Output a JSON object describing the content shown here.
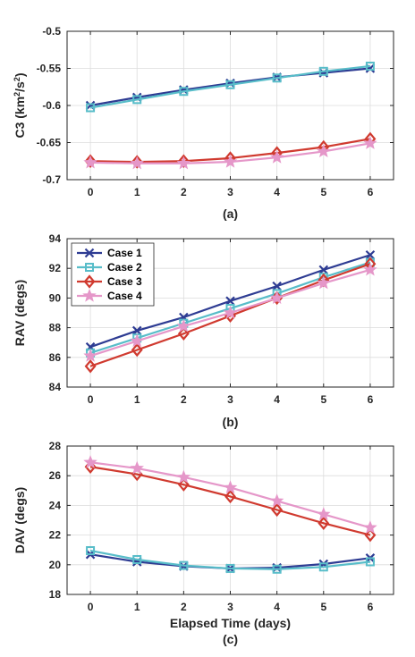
{
  "chart_data": [
    {
      "type": "line",
      "id": "a",
      "caption": "(a)",
      "ylabel": "C3 (km",
      "ylabel_sup1": "2",
      "ylabel_mid": "/s",
      "ylabel_sup2": "2",
      "ylabel_end": ")",
      "xlabel": "",
      "xlim": [
        -0.5,
        6.5
      ],
      "ylim": [
        -0.7,
        -0.5
      ],
      "xticks": [
        0,
        1,
        2,
        3,
        4,
        5,
        6
      ],
      "yticks": [
        -0.7,
        -0.65,
        -0.6,
        -0.55,
        -0.5
      ],
      "ytick_labels": [
        "-0.7",
        "-0.65",
        "-0.6",
        "-0.55",
        "-0.5"
      ],
      "grid": true,
      "x": [
        0,
        1,
        2,
        3,
        4,
        5,
        6
      ],
      "series": [
        {
          "name": "Case 1",
          "color": "#2E3C93",
          "marker": "x",
          "values": [
            -0.6,
            -0.589,
            -0.579,
            -0.57,
            -0.562,
            -0.556,
            -0.55
          ]
        },
        {
          "name": "Case 2",
          "color": "#58BDC9",
          "marker": "square",
          "values": [
            -0.603,
            -0.592,
            -0.581,
            -0.572,
            -0.563,
            -0.554,
            -0.547
          ]
        },
        {
          "name": "Case 3",
          "color": "#D03A2F",
          "marker": "diamond",
          "values": [
            -0.675,
            -0.676,
            -0.675,
            -0.671,
            -0.664,
            -0.656,
            -0.645
          ]
        },
        {
          "name": "Case 4",
          "color": "#E597C9",
          "marker": "star",
          "values": [
            -0.677,
            -0.678,
            -0.678,
            -0.676,
            -0.67,
            -0.662,
            -0.651
          ]
        }
      ]
    },
    {
      "type": "line",
      "id": "b",
      "caption": "(b)",
      "ylabel": "RAV (degs)",
      "xlabel": "",
      "xlim": [
        -0.5,
        6.5
      ],
      "ylim": [
        84,
        94
      ],
      "xticks": [
        0,
        1,
        2,
        3,
        4,
        5,
        6
      ],
      "yticks": [
        84,
        86,
        88,
        90,
        92,
        94
      ],
      "ytick_labels": [
        "84",
        "86",
        "88",
        "90",
        "92",
        "94"
      ],
      "grid": true,
      "legend": {
        "position": "top-left",
        "entries": [
          "Case 1",
          "Case 2",
          "Case 3",
          "Case 4"
        ]
      },
      "x": [
        0,
        1,
        2,
        3,
        4,
        5,
        6
      ],
      "series": [
        {
          "name": "Case 1",
          "color": "#2E3C93",
          "marker": "x",
          "values": [
            86.7,
            87.8,
            88.7,
            89.8,
            90.8,
            91.9,
            92.9
          ]
        },
        {
          "name": "Case 2",
          "color": "#58BDC9",
          "marker": "square",
          "values": [
            86.3,
            87.3,
            88.3,
            89.3,
            90.3,
            91.4,
            92.4
          ]
        },
        {
          "name": "Case 3",
          "color": "#D03A2F",
          "marker": "diamond",
          "values": [
            85.4,
            86.5,
            87.6,
            88.8,
            90.0,
            91.2,
            92.3
          ]
        },
        {
          "name": "Case 4",
          "color": "#E597C9",
          "marker": "star",
          "values": [
            86.1,
            87.1,
            88.1,
            89.0,
            90.0,
            91.0,
            91.9
          ]
        }
      ]
    },
    {
      "type": "line",
      "id": "c",
      "caption": "(c)",
      "ylabel": "DAV (degs)",
      "xlabel": "Elapsed Time (days)",
      "xlim": [
        -0.5,
        6.5
      ],
      "ylim": [
        18,
        28
      ],
      "xticks": [
        0,
        1,
        2,
        3,
        4,
        5,
        6
      ],
      "yticks": [
        18,
        20,
        22,
        24,
        26,
        28
      ],
      "ytick_labels": [
        "18",
        "20",
        "22",
        "24",
        "26",
        "28"
      ],
      "grid": true,
      "x": [
        0,
        1,
        2,
        3,
        4,
        5,
        6
      ],
      "series": [
        {
          "name": "Case 1",
          "color": "#2E3C93",
          "marker": "x",
          "values": [
            20.7,
            20.2,
            19.9,
            19.75,
            19.8,
            20.05,
            20.45
          ]
        },
        {
          "name": "Case 2",
          "color": "#58BDC9",
          "marker": "square",
          "values": [
            20.95,
            20.35,
            19.95,
            19.75,
            19.7,
            19.85,
            20.2
          ]
        },
        {
          "name": "Case 3",
          "color": "#D03A2F",
          "marker": "diamond",
          "values": [
            26.6,
            26.1,
            25.4,
            24.6,
            23.7,
            22.8,
            22.0
          ]
        },
        {
          "name": "Case 4",
          "color": "#E597C9",
          "marker": "star",
          "values": [
            26.9,
            26.5,
            25.9,
            25.2,
            24.3,
            23.4,
            22.5
          ]
        }
      ]
    }
  ]
}
